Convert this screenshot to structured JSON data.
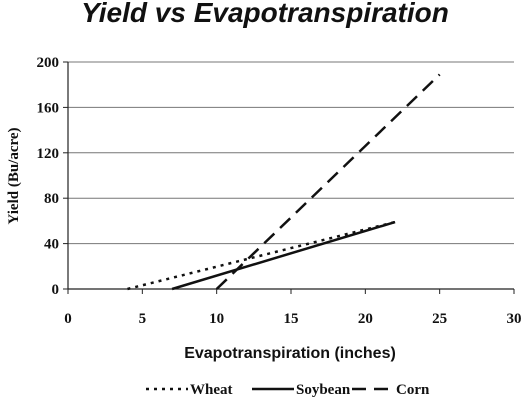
{
  "chart_data": {
    "type": "line",
    "title": "Yield vs Evapotranspiration",
    "xlabel": "Evapotranspiration (inches)",
    "ylabel": "Yield (Bu/acre)",
    "xlim": [
      0,
      30
    ],
    "ylim": [
      0,
      200
    ],
    "xticks": [
      "0",
      "5",
      "10",
      "15",
      "20",
      "25",
      "30"
    ],
    "yticks": [
      "0",
      "40",
      "80",
      "120",
      "160",
      "200"
    ],
    "grid": "horizontal",
    "legend_position": "bottom",
    "series": [
      {
        "name": "Wheat",
        "style": "dotted",
        "x": [
          4,
          22
        ],
        "y": [
          0,
          59
        ]
      },
      {
        "name": "Soybean",
        "style": "solid",
        "x": [
          7,
          22
        ],
        "y": [
          0,
          59
        ]
      },
      {
        "name": "Corn",
        "style": "dashed",
        "x": [
          10,
          25
        ],
        "y": [
          0,
          189
        ]
      }
    ]
  }
}
